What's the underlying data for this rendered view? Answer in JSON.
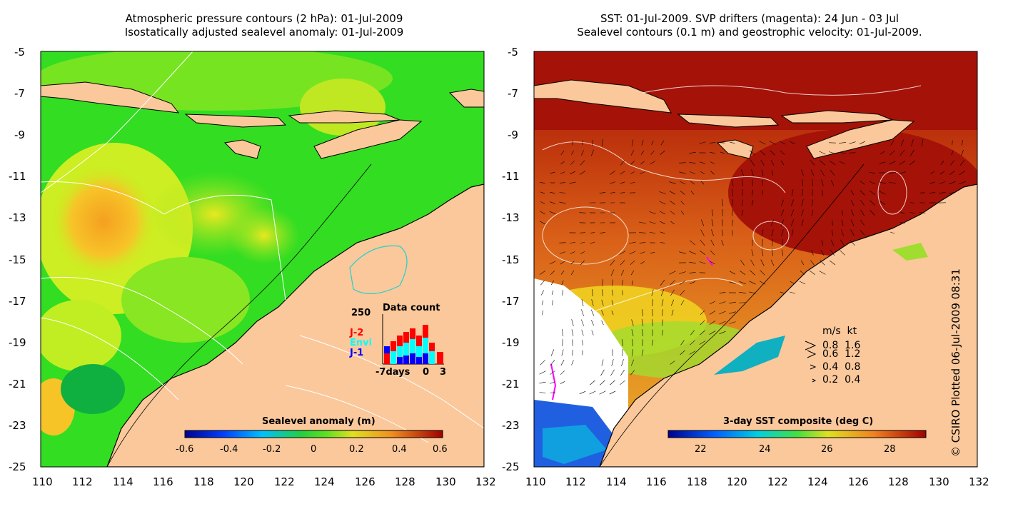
{
  "left_panel": {
    "title_line1": "Atmospheric pressure contours (2 hPa): 01-Jul-2009",
    "title_line2": "Isostatically adjusted sealevel anomaly: 01-Jul-2009",
    "colorbar_label": "Sealevel anomaly (m)",
    "colorbar_ticks": [
      "-0.6",
      "-0.4",
      "-0.2",
      "0",
      "0.2",
      "0.4",
      "0.6"
    ],
    "inset": {
      "title": "Data count",
      "ymax_label": "250",
      "series_labels": [
        {
          "label": "J-2",
          "color": "#ff0000"
        },
        {
          "label": "Envi",
          "color": "#00ffff"
        },
        {
          "label": "J-1",
          "color": "#0000ff"
        }
      ],
      "x_labels": [
        "-7days",
        "0",
        "3"
      ]
    }
  },
  "right_panel": {
    "title_line1": "SST: 01-Jul-2009. SVP drifters (magenta): 24 Jun - 03 Jul",
    "title_line2": "Sealevel contours (0.1 m) and geostrophic velocity: 01-Jul-2009.",
    "colorbar_label": "3-day SST composite (deg C)",
    "colorbar_ticks": [
      "22",
      "24",
      "26",
      "28"
    ],
    "velocity_legend": {
      "header": "m/s  kt",
      "rows": [
        "0.8  1.6",
        "0.6  1.2",
        "0.4  0.8",
        "0.2  0.4"
      ]
    }
  },
  "axes": {
    "y_ticks": [
      "-5",
      "-7",
      "-9",
      "-11",
      "-13",
      "-15",
      "-17",
      "-19",
      "-21",
      "-23",
      "-25"
    ],
    "x_ticks": [
      "110",
      "112",
      "114",
      "116",
      "118",
      "120",
      "122",
      "124",
      "126",
      "128",
      "130",
      "132"
    ]
  },
  "credit": "© CSIRO Plotted 06-Jul-2009 08:31",
  "colors": {
    "land": "#fbc89b",
    "sla_green": "#33dd22",
    "sla_yellow": "#ccee22",
    "sla_orange": "#f7a420",
    "sst_dark_red": "#a51208",
    "sst_orange": "#e0741e",
    "sst_yellow": "#f0d020"
  }
}
